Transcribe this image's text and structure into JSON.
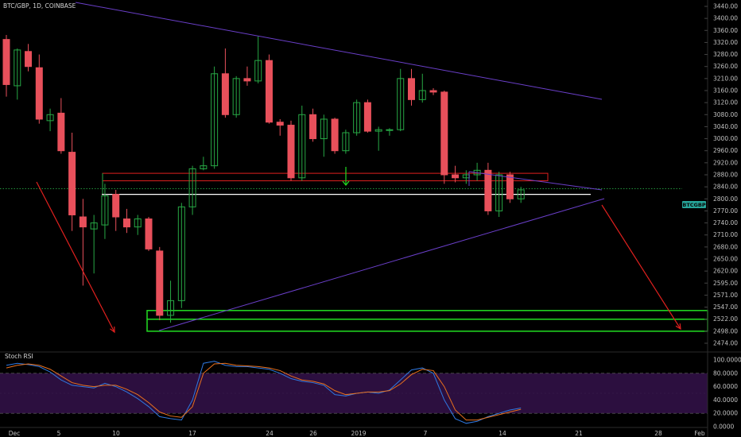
{
  "header": {
    "title": "BTC/GBP, 1D, COINBASE"
  },
  "symbol_badge": "BTCGBP",
  "indicator": {
    "name": "Stoch RSI"
  },
  "colors": {
    "bull": "#27a845",
    "bear": "#e8505b",
    "trendline": "#6a3fc9",
    "arrow": "#e0201e",
    "support_box": "#22dd22",
    "resistance_box": "#e0201e",
    "stoch_k": "#2f78e0",
    "stoch_d": "#e8701d",
    "rsi_band": "#2c0f3f",
    "badge": "#26a69a"
  },
  "chart_data": [
    {
      "type": "candlestick",
      "title": "BTC/GBP, 1D, COINBASE",
      "y_axis_ticks": [
        "3440.00",
        "3400.00",
        "3360.00",
        "3320.00",
        "3280.00",
        "3260.00",
        "3210.00",
        "3160.00",
        "3120.00",
        "3080.00",
        "3040.00",
        "3000.00",
        "2960.00",
        "2920.00",
        "2880.00",
        "2840.00",
        "2800.00",
        "2770.00",
        "2740.00",
        "2710.00",
        "2680.00",
        "2650.00",
        "2620.00",
        "2595.00",
        "2571.00",
        "2547.00",
        "2522.00",
        "2498.00",
        "2474.00"
      ],
      "x_axis_ticks": [
        "Dec",
        "5",
        "10",
        "17",
        "24",
        "26",
        "2019",
        "7",
        "14",
        "21",
        "28",
        "Feb"
      ],
      "candles": [
        {
          "o": 3330,
          "h": 3345,
          "l": 3140,
          "c": 3185
        },
        {
          "o": 3180,
          "h": 3300,
          "l": 3130,
          "c": 3295
        },
        {
          "o": 3290,
          "h": 3315,
          "l": 3240,
          "c": 3260
        },
        {
          "o": 3255,
          "h": 3280,
          "l": 3050,
          "c": 3065
        },
        {
          "o": 3060,
          "h": 3100,
          "l": 3025,
          "c": 3080
        },
        {
          "o": 3085,
          "h": 3135,
          "l": 2950,
          "c": 2960
        },
        {
          "o": 2955,
          "h": 3020,
          "l": 2720,
          "c": 2760
        },
        {
          "o": 2755,
          "h": 2800,
          "l": 2590,
          "c": 2730
        },
        {
          "o": 2725,
          "h": 2760,
          "l": 2615,
          "c": 2740
        },
        {
          "o": 2735,
          "h": 2850,
          "l": 2700,
          "c": 2810
        },
        {
          "o": 2815,
          "h": 2830,
          "l": 2720,
          "c": 2755
        },
        {
          "o": 2750,
          "h": 2775,
          "l": 2715,
          "c": 2730
        },
        {
          "o": 2730,
          "h": 2760,
          "l": 2710,
          "c": 2750
        },
        {
          "o": 2750,
          "h": 2755,
          "l": 2670,
          "c": 2675
        },
        {
          "o": 2670,
          "h": 2680,
          "l": 2520,
          "c": 2530
        },
        {
          "o": 2530,
          "h": 2600,
          "l": 2515,
          "c": 2560
        },
        {
          "o": 2560,
          "h": 2790,
          "l": 2545,
          "c": 2780
        },
        {
          "o": 2780,
          "h": 2910,
          "l": 2760,
          "c": 2900
        },
        {
          "o": 2900,
          "h": 2940,
          "l": 2895,
          "c": 2910
        },
        {
          "o": 2910,
          "h": 3260,
          "l": 2900,
          "c": 3230
        },
        {
          "o": 3230,
          "h": 3300,
          "l": 3070,
          "c": 3080
        },
        {
          "o": 3080,
          "h": 3220,
          "l": 3070,
          "c": 3210
        },
        {
          "o": 3210,
          "h": 3260,
          "l": 3180,
          "c": 3200
        },
        {
          "o": 3200,
          "h": 3340,
          "l": 3190,
          "c": 3270
        },
        {
          "o": 3270,
          "h": 3280,
          "l": 3050,
          "c": 3055
        },
        {
          "o": 3055,
          "h": 3065,
          "l": 3010,
          "c": 3045
        },
        {
          "o": 3045,
          "h": 3060,
          "l": 2860,
          "c": 2870
        },
        {
          "o": 2870,
          "h": 3110,
          "l": 2860,
          "c": 3080
        },
        {
          "o": 3080,
          "h": 3100,
          "l": 2990,
          "c": 3000
        },
        {
          "o": 3000,
          "h": 3080,
          "l": 2940,
          "c": 3065
        },
        {
          "o": 3065,
          "h": 3070,
          "l": 2950,
          "c": 2960
        },
        {
          "o": 2960,
          "h": 3030,
          "l": 2950,
          "c": 3020
        },
        {
          "o": 3020,
          "h": 3130,
          "l": 3010,
          "c": 3120
        },
        {
          "o": 3120,
          "h": 3130,
          "l": 3020,
          "c": 3025
        },
        {
          "o": 3025,
          "h": 3040,
          "l": 2960,
          "c": 3030
        },
        {
          "o": 3030,
          "h": 3035,
          "l": 3010,
          "c": 3030
        },
        {
          "o": 3030,
          "h": 3250,
          "l": 3025,
          "c": 3210
        },
        {
          "o": 3210,
          "h": 3250,
          "l": 3110,
          "c": 3130
        },
        {
          "o": 3130,
          "h": 3230,
          "l": 3120,
          "c": 3160
        },
        {
          "o": 3160,
          "h": 3170,
          "l": 3145,
          "c": 3155
        },
        {
          "o": 3155,
          "h": 3160,
          "l": 2850,
          "c": 2880
        },
        {
          "o": 2880,
          "h": 2910,
          "l": 2855,
          "c": 2870
        },
        {
          "o": 2870,
          "h": 2895,
          "l": 2850,
          "c": 2880
        },
        {
          "o": 2880,
          "h": 2920,
          "l": 2860,
          "c": 2895
        },
        {
          "o": 2895,
          "h": 2920,
          "l": 2760,
          "c": 2770
        },
        {
          "o": 2770,
          "h": 2890,
          "l": 2755,
          "c": 2880
        },
        {
          "o": 2880,
          "h": 2890,
          "l": 2790,
          "c": 2800
        },
        {
          "o": 2800,
          "h": 2840,
          "l": 2790,
          "c": 2830
        }
      ],
      "levels": [
        {
          "label": "resistance_box",
          "top": 2885,
          "bottom": 2860,
          "color": "#e0201e"
        },
        {
          "label": "support_line",
          "value": 2815,
          "color": "#ffffff"
        },
        {
          "label": "demand_zone",
          "top": 2540,
          "bottom": 2498,
          "color": "#22dd22"
        },
        {
          "label": "last_price_dotted",
          "value": 2834
        }
      ]
    },
    {
      "type": "line",
      "title": "Stoch RSI",
      "y_axis_ticks": [
        "100.0000",
        "80.0000",
        "60.0000",
        "40.0000",
        "20.0000",
        "0.0000"
      ],
      "ylim": [
        0,
        100
      ],
      "band": [
        20,
        80
      ],
      "series": [
        {
          "values": [
            92,
            95,
            93,
            90,
            82,
            70,
            62,
            60,
            58,
            65,
            60,
            52,
            42,
            30,
            15,
            12,
            10,
            40,
            95,
            98,
            92,
            90,
            90,
            88,
            86,
            80,
            72,
            68,
            66,
            62,
            48,
            46,
            50,
            52,
            50,
            55,
            70,
            85,
            88,
            80,
            40,
            12,
            5,
            8,
            15,
            20,
            25,
            28
          ]
        },
        {
          "values": [
            88,
            92,
            94,
            92,
            86,
            76,
            66,
            62,
            60,
            62,
            62,
            56,
            48,
            36,
            22,
            16,
            14,
            30,
            80,
            94,
            95,
            92,
            91,
            90,
            88,
            84,
            76,
            70,
            68,
            64,
            54,
            48,
            50,
            52,
            52,
            54,
            64,
            78,
            86,
            84,
            60,
            25,
            10,
            10,
            14,
            18,
            22,
            26
          ]
        }
      ]
    }
  ]
}
